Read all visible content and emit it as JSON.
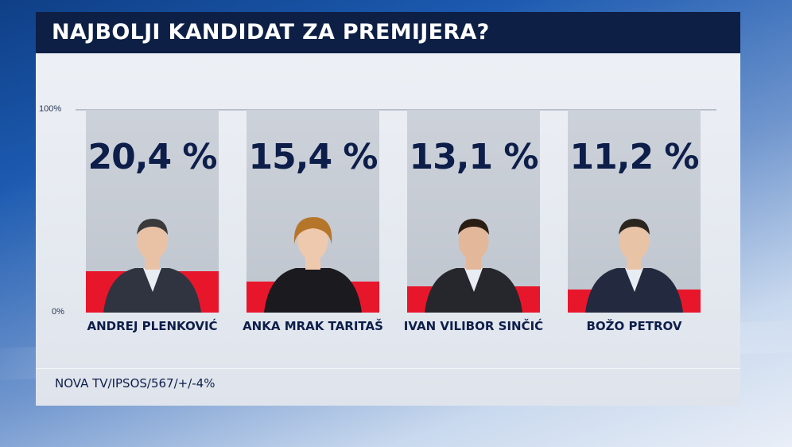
{
  "title": "NAJBOLJI KANDIDAT ZA PREMIJERA?",
  "source": "NOVA TV/IPSOS/567/+/-4%",
  "chart_data": {
    "type": "bar",
    "categories": [
      "ANDREJ PLENKOVIĆ",
      "ANKA MRAK TARITAŠ",
      "IVAN VILIBOR SINČIĆ",
      "BOŽO PETROV"
    ],
    "values": [
      20.4,
      15.4,
      13.1,
      11.2
    ],
    "value_labels": [
      "20,4 %",
      "15,4 %",
      "13,1 %",
      "11,2 %"
    ],
    "ylim": [
      0,
      100
    ],
    "tick_labels": [
      "100%",
      "0%"
    ],
    "title": "NAJBOLJI KANDIDAT ZA PREMIJERA?",
    "xlabel": "",
    "ylabel": "",
    "bar_color": "#e8162b",
    "column_color": "#c6cbd3",
    "text_color": "#0d1e4a",
    "title_bar_color": "#0e1f45"
  }
}
